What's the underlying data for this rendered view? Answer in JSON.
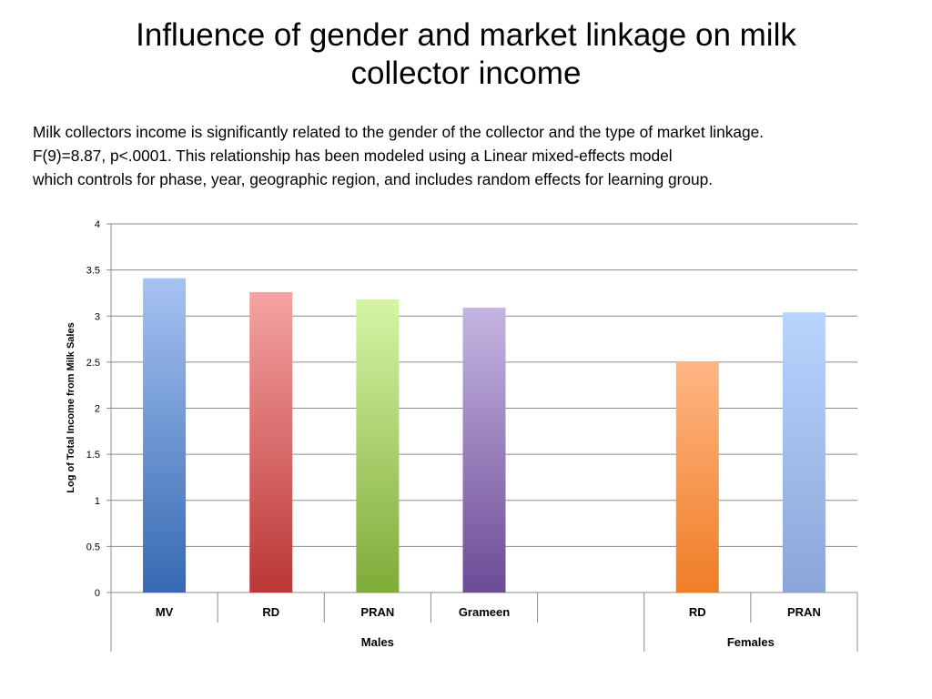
{
  "slide": {
    "title_lines": [
      "Influence of gender and market linkage on milk",
      "collector income"
    ],
    "description_lines": [
      "Milk collectors income is significantly related to the gender of the collector and the type of market linkage.",
      "F(9)=8.87, p<.0001. This relationship has been modeled using a Linear mixed-effects model",
      "which controls for phase, year, geographic region, and includes random effects for learning group."
    ]
  },
  "chart_data": {
    "type": "bar",
    "ylabel": "Log of Total Income from Milk Sales",
    "ylim": [
      0,
      4
    ],
    "yticks": [
      "0",
      "0.5",
      "1",
      "1.5",
      "2",
      "2.5",
      "3",
      "3.5",
      "4"
    ],
    "grid": true,
    "categories": [
      "MV",
      "RD",
      "PRAN",
      "Grameen",
      "",
      "RD",
      "PRAN"
    ],
    "groups": [
      {
        "label": "Males",
        "span": 5
      },
      {
        "label": "Females",
        "span": 2
      }
    ],
    "values": [
      3.41,
      3.26,
      3.18,
      3.09,
      null,
      2.5,
      3.04
    ],
    "colors": [
      [
        "#a6c2f2",
        "#3569b2"
      ],
      [
        "#f5a3a3",
        "#bb3735"
      ],
      [
        "#d5f5a5",
        "#7fab38"
      ],
      [
        "#c5b5e2",
        "#6c4b96"
      ],
      null,
      [
        "#ffb683",
        "#ef7d26"
      ],
      [
        "#b8d4fe",
        "#8aa6d8"
      ]
    ]
  }
}
